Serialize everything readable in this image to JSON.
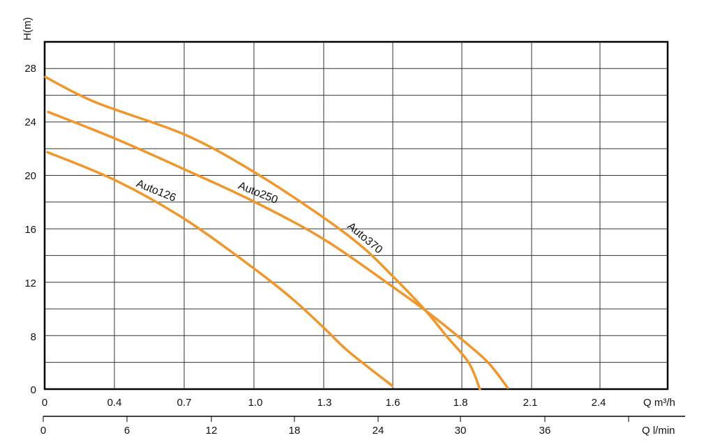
{
  "chart_data": {
    "type": "line",
    "title": "",
    "ylabel": "H(m)",
    "xlabel": "Q m³/h",
    "xlabel_secondary": "Q l/min",
    "y_ticks": [
      0,
      8,
      12,
      16,
      20,
      24,
      28
    ],
    "x_ticks_m3h": [
      "0",
      "0.4",
      "0.7",
      "1.0",
      "1.3",
      "1.6",
      "1.8",
      "2.1",
      "2.4"
    ],
    "x_ticks_lmin": [
      "0",
      "6",
      "12",
      "18",
      "24",
      "30",
      "36"
    ],
    "grid": true,
    "x_units": "l/min",
    "line_color": "#f0962a",
    "series": [
      {
        "name": "Auto126",
        "x": [
          0.2,
          5.1,
          10.1,
          15.1,
          17.9,
          20.1,
          21.9,
          25.0
        ],
        "y": [
          21.7,
          19.6,
          16.7,
          13.0,
          10.7,
          8.6,
          5.6,
          0.5
        ]
      },
      {
        "name": "Auto250",
        "x": [
          0.25,
          5.1,
          10.1,
          15.1,
          20.1,
          25.0,
          27.4,
          30.0,
          31.9,
          33.3
        ],
        "y": [
          24.7,
          22.7,
          20.4,
          18.0,
          15.2,
          11.7,
          9.9,
          7.5,
          4.0,
          0.2
        ]
      },
      {
        "name": "Auto370",
        "x": [
          0.05,
          3.7,
          10.1,
          15.1,
          20.1,
          22.9,
          25.0,
          27.4,
          28.9,
          30.5,
          31.3
        ],
        "y": [
          27.3,
          25.4,
          23.0,
          20.2,
          16.8,
          14.6,
          12.5,
          9.9,
          8.0,
          4.0,
          0
        ]
      }
    ]
  }
}
